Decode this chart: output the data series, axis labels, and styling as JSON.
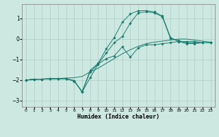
{
  "title": "",
  "xlabel": "Humidex (Indice chaleur)",
  "background_color": "#cce8e0",
  "grid_color": "#aaccc4",
  "line_color": "#1a7a6e",
  "xlim": [
    -0.5,
    23.5
  ],
  "ylim": [
    -3.3,
    1.7
  ],
  "xticks": [
    0,
    1,
    2,
    3,
    4,
    5,
    6,
    7,
    8,
    9,
    10,
    11,
    12,
    13,
    14,
    15,
    16,
    17,
    18,
    19,
    20,
    21,
    22,
    23
  ],
  "yticks": [
    -3,
    -2,
    -1,
    0,
    1
  ],
  "lines": [
    {
      "x": [
        0,
        1,
        2,
        3,
        4,
        5,
        6,
        7,
        8,
        9,
        10,
        11,
        12,
        13,
        14,
        15,
        16,
        17,
        18,
        19,
        20,
        21,
        22,
        23
      ],
      "y": [
        -2.0,
        -1.95,
        -1.95,
        -1.93,
        -1.93,
        -1.93,
        -2.05,
        -2.55,
        -1.6,
        -1.22,
        -0.95,
        -0.82,
        -0.38,
        -0.88,
        -0.42,
        -0.28,
        -0.28,
        -0.22,
        -0.18,
        -0.12,
        -0.12,
        -0.12,
        -0.18,
        -0.18
      ],
      "marker": true
    },
    {
      "x": [
        0,
        1,
        2,
        3,
        4,
        5,
        6,
        7,
        8,
        9,
        10,
        11,
        12,
        13,
        14,
        15,
        16,
        17,
        18,
        19,
        20,
        21,
        22,
        23
      ],
      "y": [
        -2.0,
        -1.95,
        -1.95,
        -1.93,
        -1.93,
        -1.93,
        -2.02,
        -2.58,
        -1.52,
        -1.18,
        -0.48,
        0.08,
        0.82,
        1.22,
        1.38,
        1.38,
        1.32,
        1.12,
        0.08,
        -0.12,
        -0.22,
        -0.22,
        -0.18,
        -0.18
      ],
      "marker": true
    },
    {
      "x": [
        0,
        1,
        2,
        3,
        4,
        5,
        6,
        7,
        8,
        9,
        10,
        11,
        12,
        13,
        14,
        15,
        16,
        17,
        18,
        19,
        20,
        21,
        22,
        23
      ],
      "y": [
        -2.0,
        -1.95,
        -1.95,
        -1.93,
        -1.93,
        -1.93,
        -2.02,
        -2.58,
        -1.88,
        -1.22,
        -0.68,
        -0.18,
        0.12,
        0.78,
        1.28,
        1.32,
        1.28,
        1.08,
        0.02,
        -0.08,
        -0.18,
        -0.18,
        -0.18,
        -0.18
      ],
      "marker": true
    },
    {
      "x": [
        0,
        1,
        2,
        3,
        4,
        5,
        6,
        7,
        8,
        9,
        10,
        11,
        12,
        13,
        14,
        15,
        16,
        17,
        18,
        19,
        20,
        21,
        22,
        23
      ],
      "y": [
        -2.0,
        -1.98,
        -1.96,
        -1.94,
        -1.92,
        -1.9,
        -1.88,
        -1.82,
        -1.6,
        -1.42,
        -1.18,
        -0.95,
        -0.72,
        -0.52,
        -0.35,
        -0.22,
        -0.15,
        -0.1,
        -0.05,
        0.0,
        0.0,
        -0.05,
        -0.1,
        -0.15
      ],
      "marker": false
    }
  ]
}
